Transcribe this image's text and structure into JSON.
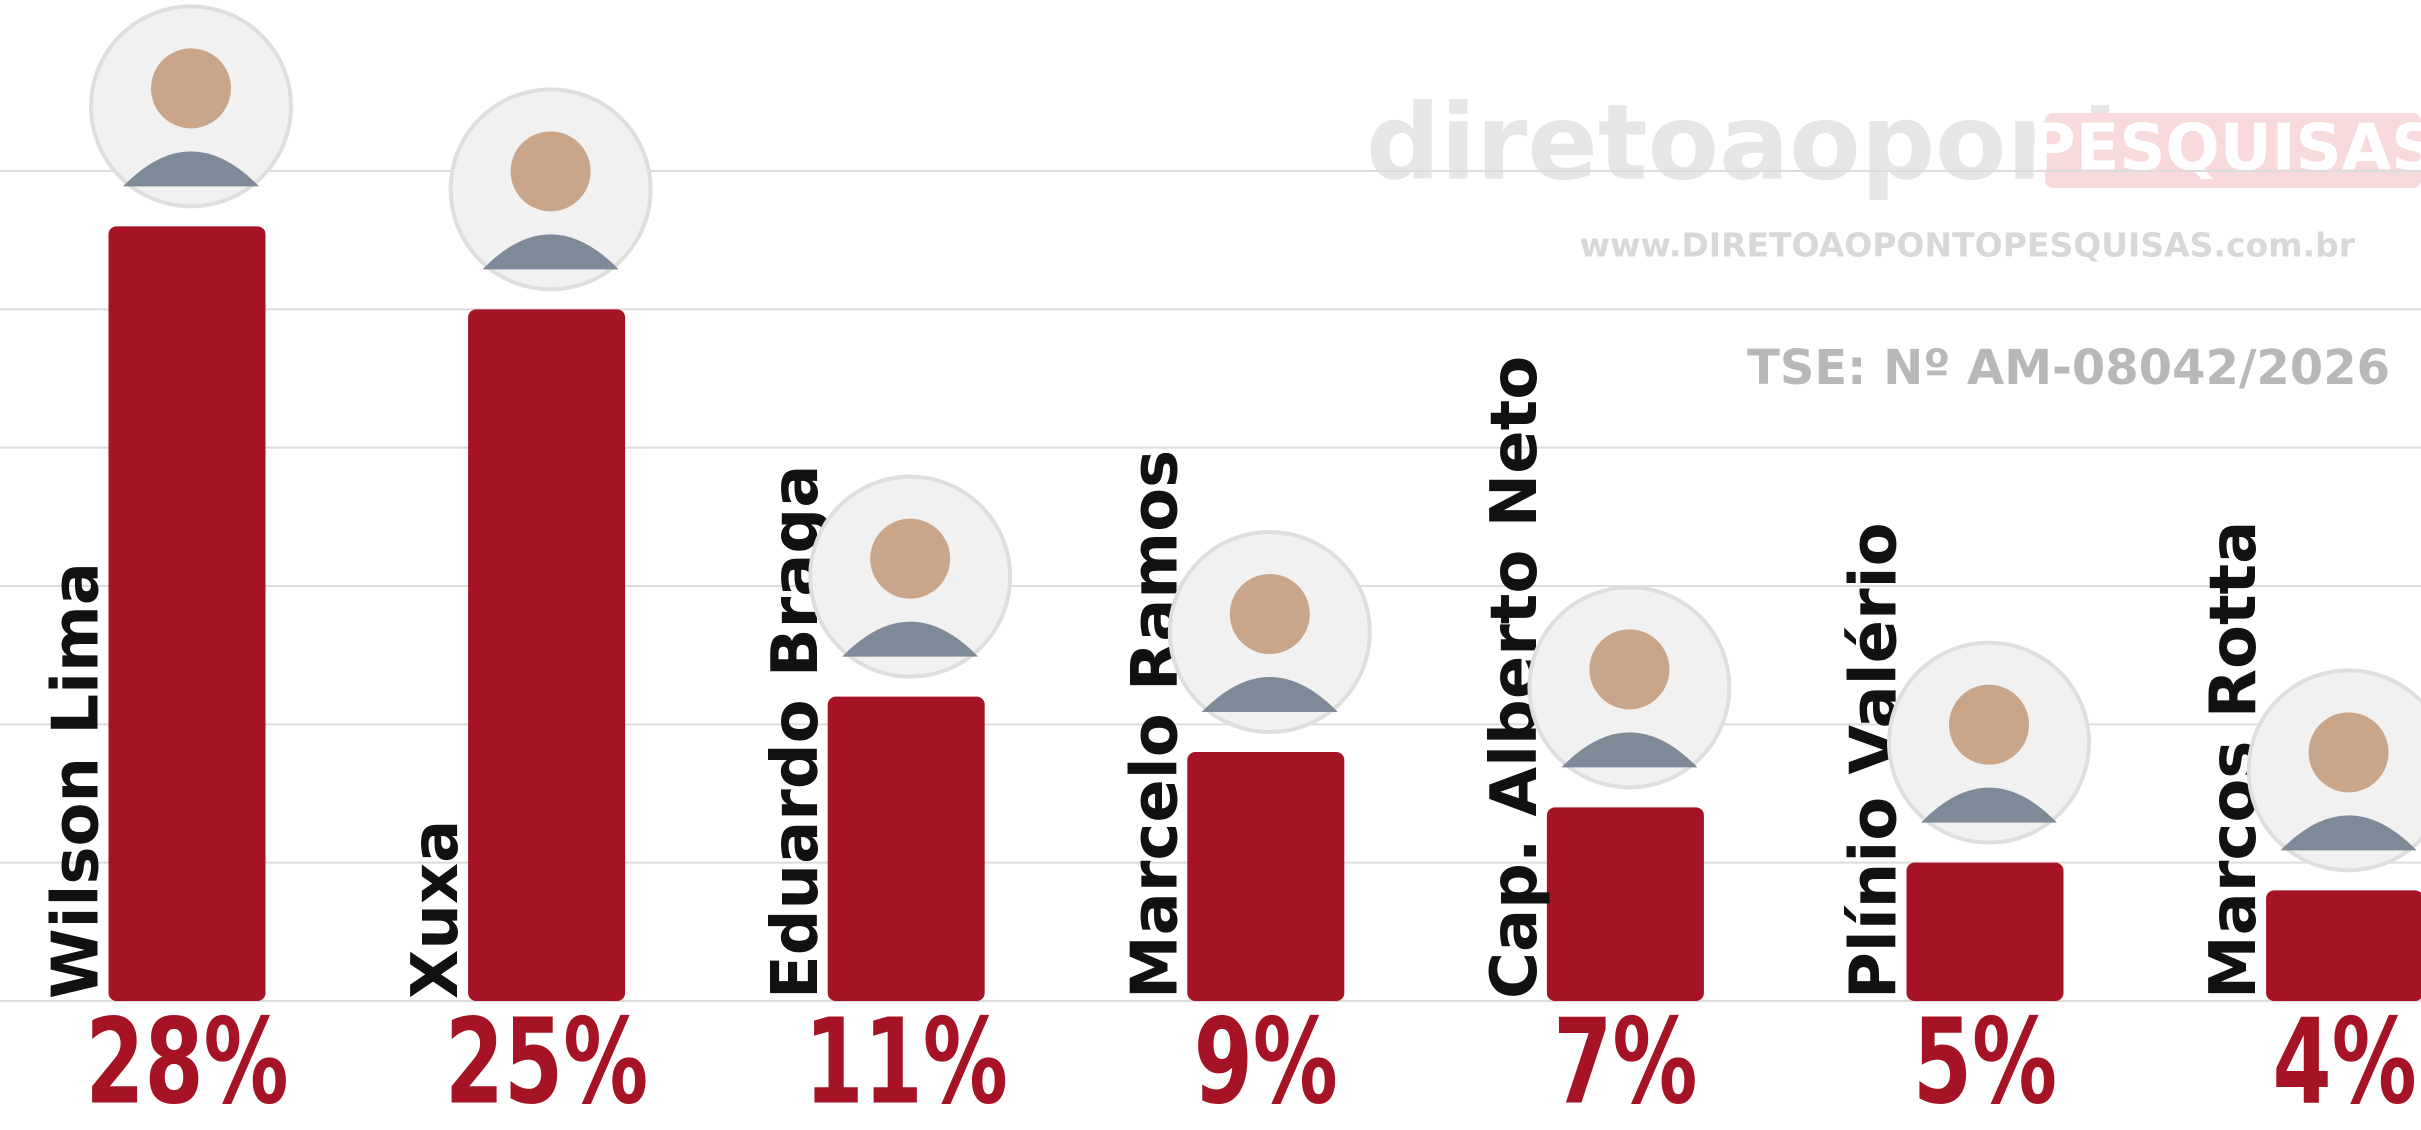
{
  "chart_data": {
    "type": "bar",
    "categories": [
      "Wilson Lima",
      "Xuxa",
      "Eduardo Braga",
      "Marcelo Ramos",
      "Cap. Alberto Neto",
      "Plínio Valério",
      "Marcos Rotta"
    ],
    "values": [
      28,
      25,
      11,
      9,
      7,
      5,
      4
    ],
    "value_labels": [
      "28%",
      "25%",
      "11%",
      "9%",
      "7%",
      "5%",
      "4%"
    ],
    "color": "#a51324",
    "ylim": [
      0,
      30
    ],
    "yticks": [
      0,
      5,
      10,
      15,
      20,
      25,
      30
    ],
    "grid": true,
    "brand": "diretoaoponto",
    "brand_tag": "PESQUISAS",
    "website": "www.DIRETOAOPONTOPESQUISAS.com.br",
    "registration": "TSE: Nº AM-08042/2026"
  }
}
